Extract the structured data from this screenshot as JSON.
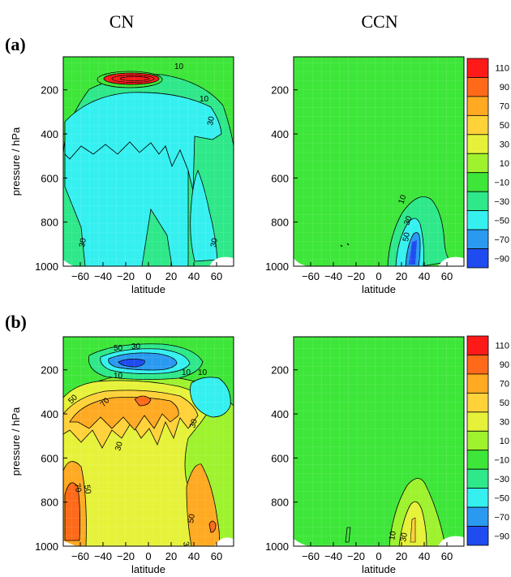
{
  "columns": [
    "CN",
    "CCN"
  ],
  "rows": [
    {
      "label": "(a)"
    },
    {
      "label": "(b)"
    }
  ],
  "colorbar": {
    "levels": [
      "110",
      "90",
      "70",
      "50",
      "30",
      "10",
      "−10",
      "−30",
      "−50",
      "−70",
      "−90"
    ],
    "colors": [
      "#ff1a1a",
      "#ff6a1a",
      "#ffaa22",
      "#ffd23a",
      "#e6f23a",
      "#9ef22e",
      "#3ee63a",
      "#2ee88a",
      "#36f0f0",
      "#2a9af0",
      "#1f4cf0"
    ]
  },
  "chart_data": [
    {
      "type": "contour",
      "panel": "(a) CN",
      "xlabel": "latitude",
      "ylabel": "pressure / hPa",
      "xlim": [
        -75,
        75
      ],
      "ylim": [
        1000,
        50
      ],
      "x_ticks": [
        -60,
        -40,
        -20,
        0,
        20,
        40,
        60
      ],
      "y_ticks": [
        200,
        400,
        600,
        800,
        1000
      ],
      "contour_labels": [
        "10",
        "10",
        "30",
        "30",
        "30"
      ],
      "regions": [
        {
          "range": "-10 to 10",
          "description": "background"
        },
        {
          "range": "-30 to -10",
          "description": "broad band 200-1000 hPa"
        },
        {
          "range": ">90",
          "description": "upper-level maximum near 100 hPa, 20S-20N"
        }
      ]
    },
    {
      "type": "contour",
      "panel": "(a) CCN",
      "xlabel": "latitude",
      "ylim": [
        1000,
        50
      ],
      "xlim": [
        -75,
        75
      ],
      "x_ticks": [
        -60,
        -40,
        -20,
        0,
        20,
        40,
        60
      ],
      "y_ticks": [
        200,
        400,
        600,
        800,
        1000
      ],
      "contour_labels": [
        "10",
        "30",
        "50"
      ],
      "regions": [
        {
          "range": "-10 to 10",
          "description": "background"
        },
        {
          "range": "-70 to -10",
          "description": "near-surface minimum 20-50N"
        }
      ]
    },
    {
      "type": "contour",
      "panel": "(b) CN",
      "xlabel": "latitude",
      "ylabel": "pressure / hPa",
      "xlim": [
        -75,
        75
      ],
      "ylim": [
        1000,
        50
      ],
      "x_ticks": [
        -60,
        -40,
        -20,
        0,
        20,
        40,
        60
      ],
      "y_ticks": [
        200,
        400,
        600,
        800,
        1000
      ],
      "contour_labels": [
        "30",
        "50",
        "10",
        "50",
        "10",
        "10",
        "70",
        "30",
        "30",
        "70",
        "50",
        "50",
        "30"
      ],
      "regions": [
        {
          "range": "30 to 70",
          "description": "widespread positive"
        },
        {
          "range": "-90 to -30",
          "description": "upper-level minimum near 150 hPa"
        },
        {
          "range": "70 to 90",
          "description": "maxima near 60S and 50N surface"
        }
      ]
    },
    {
      "type": "contour",
      "panel": "(b) CCN",
      "xlabel": "latitude",
      "xlim": [
        -75,
        75
      ],
      "ylim": [
        1000,
        50
      ],
      "x_ticks": [
        -60,
        -40,
        -20,
        0,
        20,
        40,
        60
      ],
      "y_ticks": [
        200,
        400,
        600,
        800,
        1000
      ],
      "contour_labels": [
        "10",
        "30"
      ],
      "regions": [
        {
          "range": "-10 to 10",
          "description": "background"
        },
        {
          "range": "10 to 50",
          "description": "near-surface maximum 20-50N"
        }
      ]
    }
  ]
}
